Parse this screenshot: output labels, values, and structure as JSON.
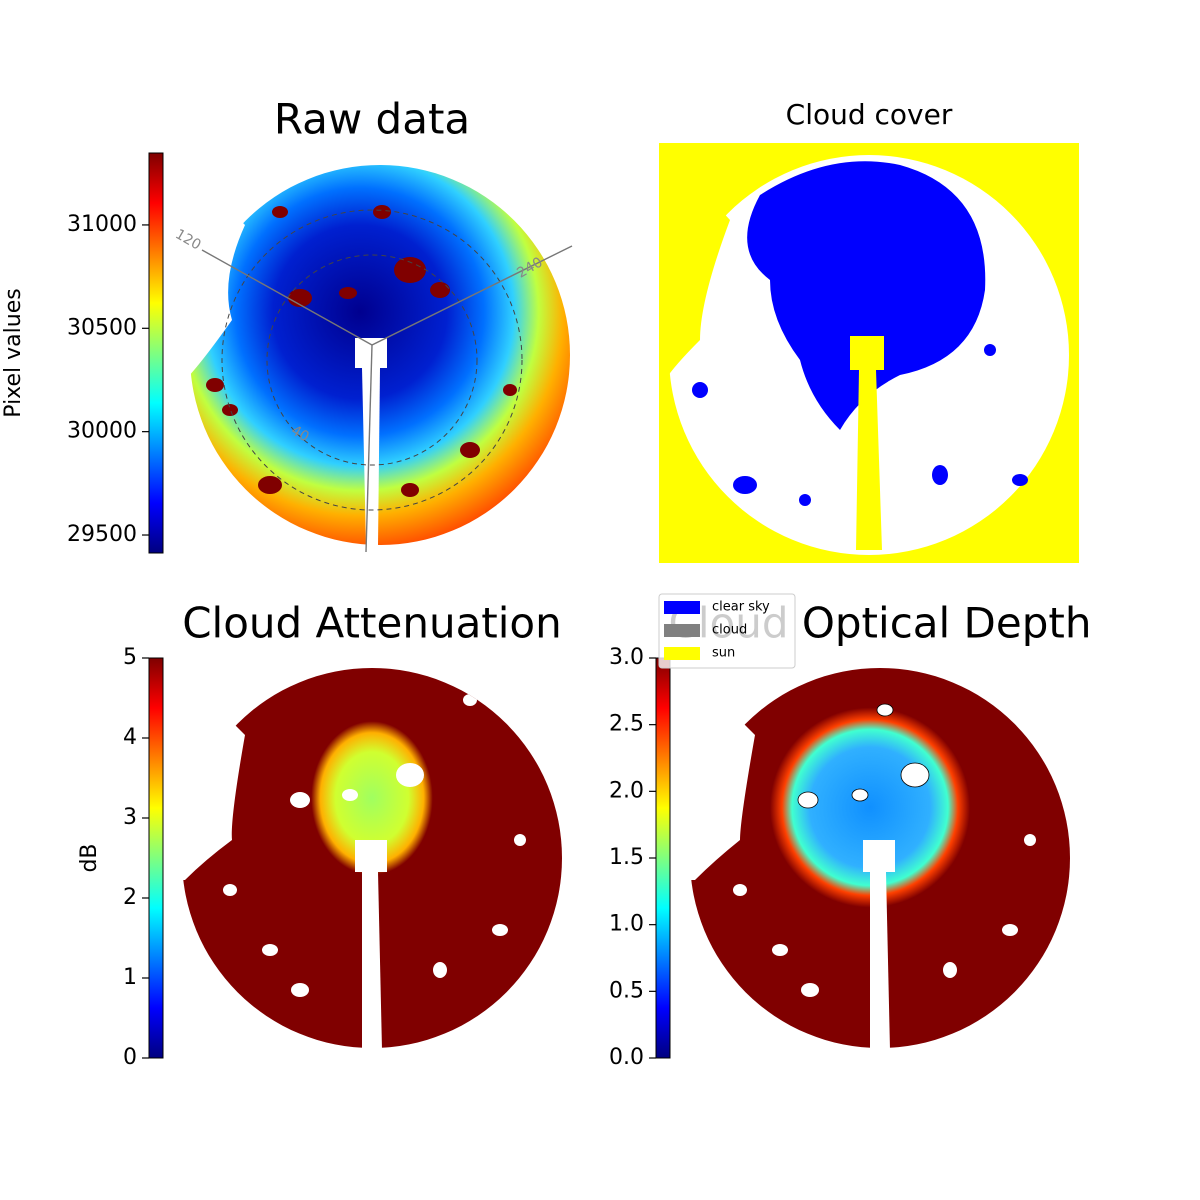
{
  "chart_data": [
    {
      "type": "image",
      "title": "Raw data",
      "colormap": "jet",
      "colorbar": {
        "label": "Pixel values",
        "lim": [
          29413,
          31348
        ],
        "ticks": [
          29500,
          30000,
          30500,
          31000
        ]
      },
      "annotations": [
        "120",
        "240",
        "40"
      ]
    },
    {
      "type": "image",
      "title": "Cloud cover",
      "legend": "upper left",
      "classes": [
        {
          "name": "clear sky",
          "color": "#0000ff"
        },
        {
          "name": "cloud",
          "color": "#808080"
        },
        {
          "name": "sun",
          "color": "#ffff00"
        }
      ]
    },
    {
      "type": "image",
      "title": "Cloud Attenuation",
      "colormap": "jet",
      "colorbar": {
        "label": "dB",
        "lim": [
          0,
          5
        ],
        "ticks": [
          0,
          1,
          2,
          3,
          4,
          5
        ]
      }
    },
    {
      "type": "image",
      "title": "Cloud Optical Depth",
      "colormap": "jet",
      "colorbar": {
        "lim": [
          0,
          3
        ],
        "ticks": [
          {
            "value": 0,
            "label": "0.0"
          },
          0.5,
          {
            "value": 1,
            "label": "1.0"
          },
          1.5,
          {
            "value": 2,
            "label": "2.0"
          },
          2.5,
          {
            "value": 3,
            "label": "3.0"
          }
        ]
      }
    }
  ]
}
